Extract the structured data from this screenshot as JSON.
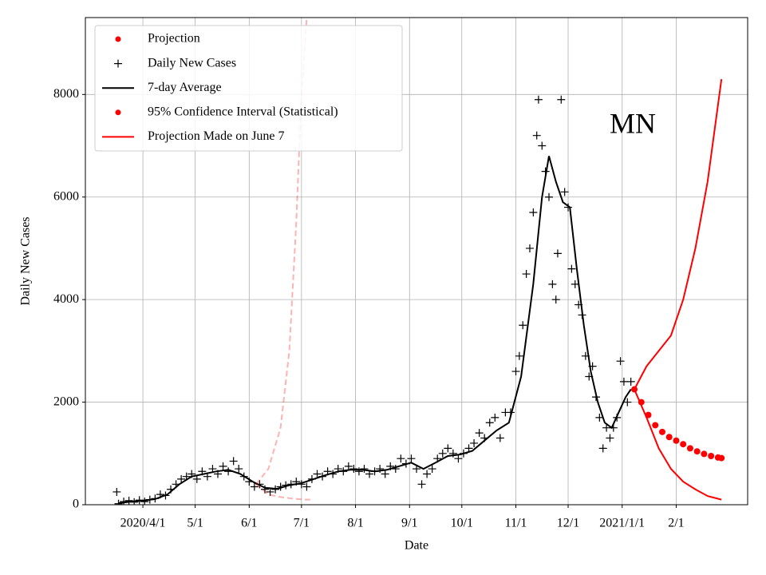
{
  "chart_data": {
    "type": "line",
    "xlabel": "Date",
    "ylabel": "Daily New Cases",
    "annotation": "MN",
    "xlim": [
      "2020-02-28",
      "2021-03-14"
    ],
    "xticks": [
      {
        "value": "2020-04-01",
        "label": "2020/4/1"
      },
      {
        "value": "2020-05-01",
        "label": "5/1"
      },
      {
        "value": "2020-06-01",
        "label": "6/1"
      },
      {
        "value": "2020-07-01",
        "label": "7/1"
      },
      {
        "value": "2020-08-01",
        "label": "8/1"
      },
      {
        "value": "2020-09-01",
        "label": "9/1"
      },
      {
        "value": "2020-10-01",
        "label": "10/1"
      },
      {
        "value": "2020-11-01",
        "label": "11/1"
      },
      {
        "value": "2020-12-01",
        "label": "12/1"
      },
      {
        "value": "2021-01-01",
        "label": "2021/1/1"
      },
      {
        "value": "2021-02-01",
        "label": "2/1"
      }
    ],
    "ylim": [
      0,
      9500
    ],
    "yticks": [
      0,
      2000,
      4000,
      6000,
      8000
    ],
    "grid": true,
    "legend": "upper left",
    "series": [
      {
        "name": "Projection",
        "color": "#ff0000",
        "style": "dot",
        "x": [
          "2021-01-08",
          "2021-01-12",
          "2021-01-16",
          "2021-01-20",
          "2021-01-24",
          "2021-01-28",
          "2021-02-01",
          "2021-02-05",
          "2021-02-09",
          "2021-02-13",
          "2021-02-17",
          "2021-02-21",
          "2021-02-25",
          "2021-02-27"
        ],
        "values": [
          2250,
          2000,
          1750,
          1550,
          1420,
          1320,
          1250,
          1180,
          1100,
          1040,
          990,
          950,
          920,
          910
        ]
      },
      {
        "name": "Daily New Cases",
        "color": "#000000",
        "style": "plus",
        "x": [
          "2020-03-17",
          "2020-03-18",
          "2020-03-21",
          "2020-03-24",
          "2020-03-27",
          "2020-03-30",
          "2020-04-02",
          "2020-04-05",
          "2020-04-08",
          "2020-04-11",
          "2020-04-14",
          "2020-04-17",
          "2020-04-20",
          "2020-04-23",
          "2020-04-26",
          "2020-04-29",
          "2020-05-02",
          "2020-05-05",
          "2020-05-08",
          "2020-05-11",
          "2020-05-14",
          "2020-05-17",
          "2020-05-20",
          "2020-05-23",
          "2020-05-26",
          "2020-05-29",
          "2020-06-01",
          "2020-06-04",
          "2020-06-07",
          "2020-06-10",
          "2020-06-13",
          "2020-06-16",
          "2020-06-19",
          "2020-06-22",
          "2020-06-25",
          "2020-06-28",
          "2020-07-01",
          "2020-07-04",
          "2020-07-07",
          "2020-07-10",
          "2020-07-13",
          "2020-07-16",
          "2020-07-19",
          "2020-07-22",
          "2020-07-25",
          "2020-07-28",
          "2020-07-31",
          "2020-08-03",
          "2020-08-06",
          "2020-08-09",
          "2020-08-12",
          "2020-08-15",
          "2020-08-18",
          "2020-08-21",
          "2020-08-24",
          "2020-08-27",
          "2020-08-30",
          "2020-09-02",
          "2020-09-05",
          "2020-09-08",
          "2020-09-11",
          "2020-09-14",
          "2020-09-17",
          "2020-09-20",
          "2020-09-23",
          "2020-09-26",
          "2020-09-29",
          "2020-10-02",
          "2020-10-05",
          "2020-10-08",
          "2020-10-11",
          "2020-10-14",
          "2020-10-17",
          "2020-10-20",
          "2020-10-23",
          "2020-10-26",
          "2020-10-29",
          "2020-11-01",
          "2020-11-03",
          "2020-11-05",
          "2020-11-07",
          "2020-11-09",
          "2020-11-11",
          "2020-11-13",
          "2020-11-14",
          "2020-11-16",
          "2020-11-18",
          "2020-11-20",
          "2020-11-22",
          "2020-11-24",
          "2020-11-25",
          "2020-11-27",
          "2020-11-29",
          "2020-12-01",
          "2020-12-03",
          "2020-12-05",
          "2020-12-07",
          "2020-12-09",
          "2020-12-11",
          "2020-12-13",
          "2020-12-15",
          "2020-12-17",
          "2020-12-19",
          "2020-12-21",
          "2020-12-23",
          "2020-12-25",
          "2020-12-27",
          "2020-12-29",
          "2020-12-31",
          "2021-01-02",
          "2021-01-04",
          "2021-01-06"
        ],
        "values": [
          250,
          20,
          60,
          80,
          50,
          90,
          60,
          100,
          120,
          200,
          180,
          300,
          400,
          500,
          550,
          600,
          500,
          650,
          550,
          700,
          600,
          750,
          650,
          850,
          700,
          550,
          450,
          350,
          400,
          300,
          250,
          300,
          350,
          380,
          400,
          450,
          400,
          350,
          500,
          600,
          550,
          650,
          600,
          700,
          650,
          750,
          700,
          650,
          700,
          600,
          650,
          700,
          600,
          750,
          700,
          900,
          800,
          900,
          700,
          400,
          600,
          700,
          900,
          1000,
          1100,
          1000,
          900,
          1000,
          1100,
          1200,
          1400,
          1300,
          1600,
          1700,
          1300,
          1800,
          1800,
          2600,
          2900,
          3500,
          4500,
          5000,
          5700,
          7200,
          7900,
          7000,
          6500,
          6000,
          4300,
          4000,
          4900,
          7900,
          6100,
          5800,
          4600,
          4300,
          3900,
          3700,
          2900,
          2500,
          2700,
          2100,
          1700,
          1100,
          1500,
          1300,
          1500,
          1700,
          2800,
          2400,
          2000,
          2400
        ]
      },
      {
        "name": "7-day Average",
        "color": "#000000",
        "style": "line",
        "x": [
          "2020-03-18",
          "2020-03-25",
          "2020-04-01",
          "2020-04-08",
          "2020-04-15",
          "2020-04-22",
          "2020-04-29",
          "2020-05-06",
          "2020-05-13",
          "2020-05-20",
          "2020-05-27",
          "2020-06-03",
          "2020-06-10",
          "2020-06-17",
          "2020-06-24",
          "2020-07-01",
          "2020-07-08",
          "2020-07-15",
          "2020-07-22",
          "2020-07-29",
          "2020-08-05",
          "2020-08-12",
          "2020-08-19",
          "2020-08-26",
          "2020-09-02",
          "2020-09-09",
          "2020-09-16",
          "2020-09-23",
          "2020-09-30",
          "2020-10-07",
          "2020-10-14",
          "2020-10-21",
          "2020-10-28",
          "2020-11-04",
          "2020-11-11",
          "2020-11-16",
          "2020-11-20",
          "2020-11-24",
          "2020-11-28",
          "2020-12-02",
          "2020-12-06",
          "2020-12-10",
          "2020-12-14",
          "2020-12-18",
          "2020-12-22",
          "2020-12-26",
          "2020-12-30",
          "2021-01-03",
          "2021-01-06"
        ],
        "values": [
          30,
          60,
          80,
          110,
          200,
          400,
          550,
          600,
          650,
          680,
          600,
          450,
          330,
          310,
          380,
          420,
          500,
          580,
          650,
          680,
          680,
          650,
          680,
          750,
          820,
          700,
          820,
          950,
          980,
          1050,
          1250,
          1450,
          1600,
          2500,
          4300,
          6000,
          6800,
          6300,
          5900,
          5800,
          4600,
          3500,
          2600,
          2000,
          1600,
          1500,
          1800,
          2100,
          2250
        ]
      },
      {
        "name": "95% Confidence Interval (Statistical)",
        "color": "#ff0000",
        "style": "band",
        "x": [
          "2021-01-08",
          "2021-01-15",
          "2021-01-22",
          "2021-01-29",
          "2021-02-05",
          "2021-02-12",
          "2021-02-19",
          "2021-02-27"
        ],
        "upper": [
          2250,
          2700,
          3000,
          3300,
          4000,
          5000,
          6300,
          8300
        ],
        "lower": [
          2250,
          1700,
          1100,
          700,
          450,
          300,
          170,
          100
        ]
      },
      {
        "name": "Projection Made on June 7",
        "color": "#ff0000",
        "style": "dashed",
        "x_upper": [
          "2020-06-05",
          "2020-06-12",
          "2020-06-19",
          "2020-06-24",
          "2020-06-28",
          "2020-07-01",
          "2020-07-04"
        ],
        "upper": [
          400,
          700,
          1500,
          3000,
          5500,
          8000,
          9500
        ],
        "x_lower": [
          "2020-06-05",
          "2020-06-12",
          "2020-06-19",
          "2020-06-26",
          "2020-07-03",
          "2020-07-06"
        ],
        "lower": [
          400,
          200,
          150,
          120,
          100,
          100
        ]
      }
    ]
  }
}
